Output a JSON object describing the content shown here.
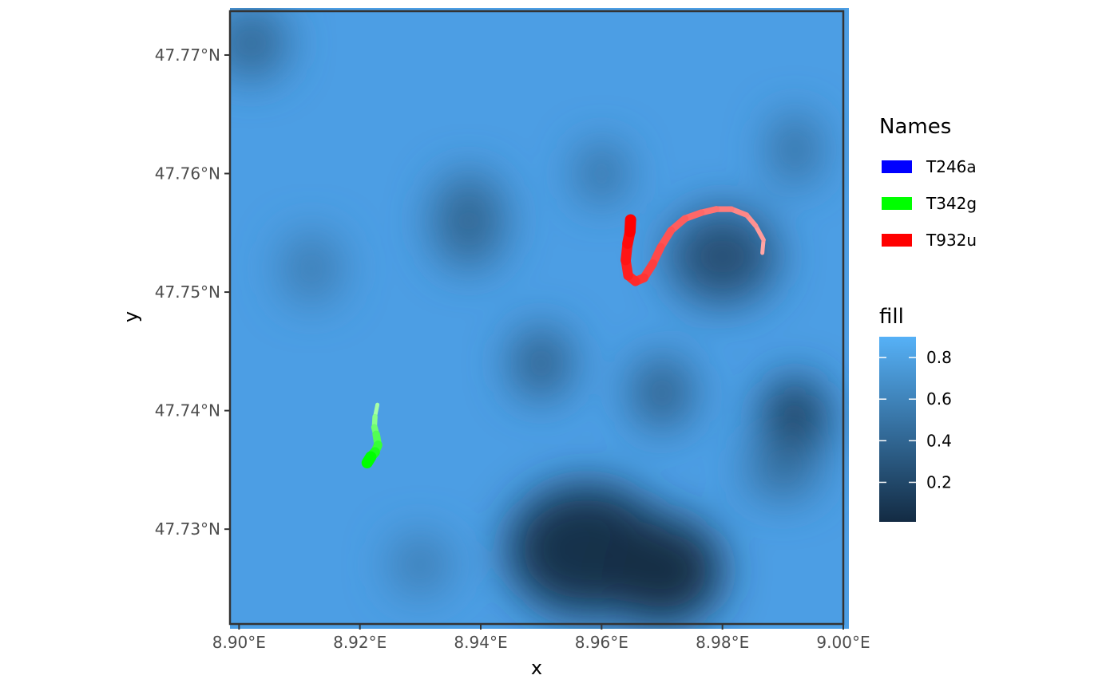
{
  "chart_data": {
    "type": "heatmap",
    "xlabel": "x",
    "ylabel": "y",
    "xlim": [
      8.8985,
      9.0
    ],
    "ylim": [
      47.722,
      47.7737
    ],
    "x_ticks": [
      {
        "value": 8.9,
        "label": "8.90°E"
      },
      {
        "value": 8.92,
        "label": "8.92°E"
      },
      {
        "value": 8.94,
        "label": "8.94°E"
      },
      {
        "value": 8.96,
        "label": "8.96°E"
      },
      {
        "value": 8.98,
        "label": "8.98°E"
      },
      {
        "value": 9.0,
        "label": "9.00°E"
      }
    ],
    "y_ticks": [
      {
        "value": 47.73,
        "label": "47.73°N"
      },
      {
        "value": 47.74,
        "label": "47.74°N"
      },
      {
        "value": 47.75,
        "label": "47.75°N"
      },
      {
        "value": 47.76,
        "label": "47.76°N"
      },
      {
        "value": 47.77,
        "label": "47.77°N"
      }
    ],
    "raster_dark_patches": [
      {
        "x": 8.9575,
        "y": 47.7283,
        "rx": 0.013,
        "ry": 0.0055,
        "value": 0.05
      },
      {
        "x": 8.97,
        "y": 47.7265,
        "rx": 0.01,
        "ry": 0.0045,
        "value": 0.02
      },
      {
        "x": 8.992,
        "y": 47.7393,
        "rx": 0.0055,
        "ry": 0.0035,
        "value": 0.15
      },
      {
        "x": 8.98,
        "y": 47.753,
        "rx": 0.009,
        "ry": 0.004,
        "value": 0.25
      },
      {
        "x": 8.95,
        "y": 47.744,
        "rx": 0.005,
        "ry": 0.003,
        "value": 0.35
      },
      {
        "x": 8.97,
        "y": 47.7415,
        "rx": 0.005,
        "ry": 0.003,
        "value": 0.35
      },
      {
        "x": 8.902,
        "y": 47.771,
        "rx": 0.006,
        "ry": 0.003,
        "value": 0.4
      },
      {
        "x": 8.938,
        "y": 47.756,
        "rx": 0.006,
        "ry": 0.004,
        "value": 0.4
      },
      {
        "x": 8.96,
        "y": 47.76,
        "rx": 0.004,
        "ry": 0.0025,
        "value": 0.45
      },
      {
        "x": 8.992,
        "y": 47.762,
        "rx": 0.004,
        "ry": 0.003,
        "value": 0.45
      },
      {
        "x": 8.912,
        "y": 47.752,
        "rx": 0.005,
        "ry": 0.003,
        "value": 0.55
      },
      {
        "x": 8.93,
        "y": 47.727,
        "rx": 0.005,
        "ry": 0.0025,
        "value": 0.55
      },
      {
        "x": 8.99,
        "y": 47.735,
        "rx": 0.006,
        "ry": 0.0025,
        "value": 0.45
      }
    ],
    "series": [
      {
        "name": "T246a",
        "color": "#0000ff",
        "points": []
      },
      {
        "name": "T342g",
        "color": "#00ff00",
        "points": [
          [
            8.9229,
            47.7405
          ],
          [
            8.9225,
            47.7395
          ],
          [
            8.9224,
            47.7386
          ],
          [
            8.9227,
            47.738
          ],
          [
            8.923,
            47.7371
          ],
          [
            8.9225,
            47.7365
          ],
          [
            8.9218,
            47.7361
          ],
          [
            8.9212,
            47.7356
          ]
        ]
      },
      {
        "name": "T932u",
        "color": "#ff0000",
        "points": [
          [
            8.9866,
            47.7533
          ],
          [
            8.9868,
            47.7544
          ],
          [
            8.9855,
            47.7556
          ],
          [
            8.984,
            47.7565
          ],
          [
            8.9815,
            47.757
          ],
          [
            8.979,
            47.757
          ],
          [
            8.9765,
            47.7567
          ],
          [
            8.9738,
            47.7562
          ],
          [
            8.9715,
            47.7552
          ],
          [
            8.9698,
            47.7538
          ],
          [
            8.9685,
            47.7524
          ],
          [
            8.967,
            47.7512
          ],
          [
            8.9656,
            47.7509
          ],
          [
            8.9644,
            47.7514
          ],
          [
            8.964,
            47.7527
          ],
          [
            8.9643,
            47.7541
          ],
          [
            8.9647,
            47.7551
          ],
          [
            8.9648,
            47.7561
          ]
        ]
      }
    ],
    "legends": [
      {
        "title": "Names",
        "entries": [
          {
            "label": "T246a",
            "color": "#0000ff"
          },
          {
            "label": "T342g",
            "color": "#00ff00"
          },
          {
            "label": "T932u",
            "color": "#ff0000"
          }
        ]
      },
      {
        "title": "fill",
        "range": [
          0.01,
          0.9
        ],
        "ticks": [
          0.8,
          0.6,
          0.4,
          0.2
        ],
        "tick_labels": [
          "0.8",
          "0.6",
          "0.4",
          "0.2"
        ],
        "color_low": "#132b43",
        "color_high": "#56b1f7"
      }
    ],
    "grid": false
  }
}
